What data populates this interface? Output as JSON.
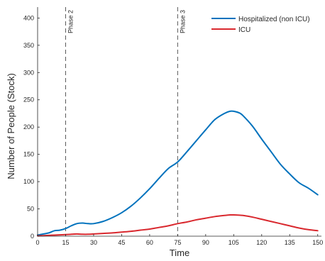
{
  "chart_data": {
    "type": "line",
    "xlabel": "Time",
    "ylabel": "Number of People (Stock)",
    "xlim": [
      0,
      152
    ],
    "ylim": [
      0,
      420
    ],
    "xticks": [
      0,
      15,
      30,
      45,
      60,
      75,
      90,
      105,
      120,
      135,
      150
    ],
    "yticks": [
      0,
      50,
      100,
      150,
      200,
      250,
      300,
      350,
      400
    ],
    "legend_position": "top-right",
    "grid": false,
    "x": [
      0,
      3,
      6,
      9,
      12,
      15,
      18,
      21,
      24,
      27,
      30,
      35,
      40,
      45,
      50,
      55,
      60,
      65,
      70,
      75,
      80,
      85,
      90,
      95,
      100,
      103,
      105,
      108,
      110,
      115,
      120,
      125,
      130,
      135,
      140,
      145,
      150
    ],
    "series": [
      {
        "name": "Hospitalized (non ICU)",
        "color": "#0072BD",
        "values": [
          2,
          4,
          6,
          10,
          11,
          14,
          19,
          23,
          24,
          23,
          23,
          27,
          34,
          43,
          55,
          70,
          87,
          106,
          124,
          136,
          155,
          175,
          195,
          214,
          225,
          229,
          229,
          226,
          221,
          202,
          178,
          155,
          132,
          114,
          98,
          88,
          76
        ]
      },
      {
        "name": "ICU",
        "color": "#D9282E",
        "values": [
          0.5,
          1,
          1.5,
          2,
          2.5,
          3,
          3.5,
          4,
          3.5,
          3.5,
          4,
          5,
          6,
          7.5,
          9,
          11,
          13,
          16,
          19,
          23,
          26,
          30,
          33,
          36,
          38,
          39,
          39,
          38.5,
          38,
          35,
          31,
          27,
          23,
          19,
          15,
          12,
          10
        ]
      }
    ],
    "annotations": [
      {
        "label": "Phase 2",
        "x": 15
      },
      {
        "label": "Phase 3",
        "x": 75
      }
    ]
  }
}
